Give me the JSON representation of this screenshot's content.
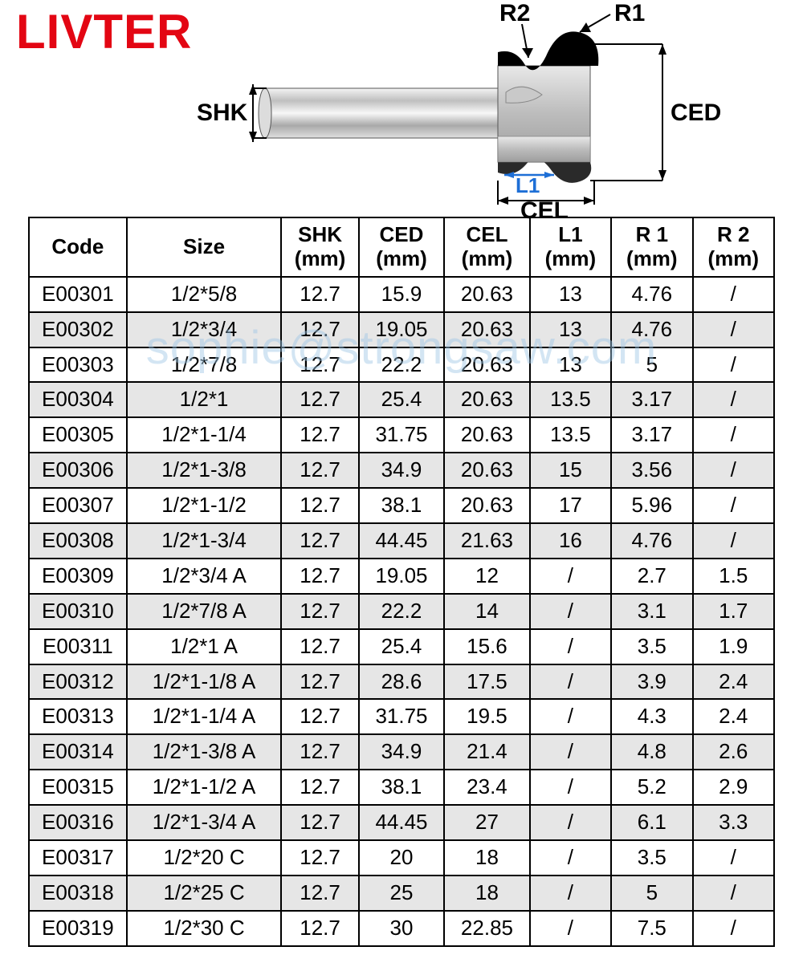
{
  "brand": "LIVTER",
  "watermark": "sophie@strongsaw.com",
  "diagram": {
    "labels": {
      "shk": "SHK",
      "ced": "CED",
      "cel": "CEL",
      "l1": "L1",
      "r1": "R1",
      "r2": "R2"
    }
  },
  "table": {
    "columns": [
      "Code",
      "Size",
      "SHK\n(mm)",
      "CED\n(mm)",
      "CEL\n(mm)",
      "L1\n(mm)",
      "R 1\n(mm)",
      "R 2\n(mm)"
    ],
    "rows": [
      [
        "E00301",
        "1/2*5/8",
        "12.7",
        "15.9",
        "20.63",
        "13",
        "4.76",
        "/"
      ],
      [
        "E00302",
        "1/2*3/4",
        "12.7",
        "19.05",
        "20.63",
        "13",
        "4.76",
        "/"
      ],
      [
        "E00303",
        "1/2*7/8",
        "12.7",
        "22.2",
        "20.63",
        "13",
        "5",
        "/"
      ],
      [
        "E00304",
        "1/2*1",
        "12.7",
        "25.4",
        "20.63",
        "13.5",
        "3.17",
        "/"
      ],
      [
        "E00305",
        "1/2*1-1/4",
        "12.7",
        "31.75",
        "20.63",
        "13.5",
        "3.17",
        "/"
      ],
      [
        "E00306",
        "1/2*1-3/8",
        "12.7",
        "34.9",
        "20.63",
        "15",
        "3.56",
        "/"
      ],
      [
        "E00307",
        "1/2*1-1/2",
        "12.7",
        "38.1",
        "20.63",
        "17",
        "5.96",
        "/"
      ],
      [
        "E00308",
        "1/2*1-3/4",
        "12.7",
        "44.45",
        "21.63",
        "16",
        "4.76",
        "/"
      ],
      [
        "E00309",
        "1/2*3/4  A",
        "12.7",
        "19.05",
        "12",
        "/",
        "2.7",
        "1.5"
      ],
      [
        "E00310",
        "1/2*7/8  A",
        "12.7",
        "22.2",
        "14",
        "/",
        "3.1",
        "1.7"
      ],
      [
        "E00311",
        "1/2*1   A",
        "12.7",
        "25.4",
        "15.6",
        "/",
        "3.5",
        "1.9"
      ],
      [
        "E00312",
        "1/2*1-1/8  A",
        "12.7",
        "28.6",
        "17.5",
        "/",
        "3.9",
        "2.4"
      ],
      [
        "E00313",
        "1/2*1-1/4  A",
        "12.7",
        "31.75",
        "19.5",
        "/",
        "4.3",
        "2.4"
      ],
      [
        "E00314",
        "1/2*1-3/8  A",
        "12.7",
        "34.9",
        "21.4",
        "/",
        "4.8",
        "2.6"
      ],
      [
        "E00315",
        "1/2*1-1/2  A",
        "12.7",
        "38.1",
        "23.4",
        "/",
        "5.2",
        "2.9"
      ],
      [
        "E00316",
        "1/2*1-3/4  A",
        "12.7",
        "44.45",
        "27",
        "/",
        "6.1",
        "3.3"
      ],
      [
        "E00317",
        "1/2*20  C",
        "12.7",
        "20",
        "18",
        "/",
        "3.5",
        "/"
      ],
      [
        "E00318",
        "1/2*25  C",
        "12.7",
        "25",
        "18",
        "/",
        "5",
        "/"
      ],
      [
        "E00319",
        "1/2*30 C",
        "12.7",
        "30",
        "22.85",
        "/",
        "7.5",
        "/"
      ]
    ],
    "alt_row_color": "#e6e6e6",
    "border_color": "#000000",
    "header_fontsize": 26,
    "cell_fontsize": 26
  }
}
